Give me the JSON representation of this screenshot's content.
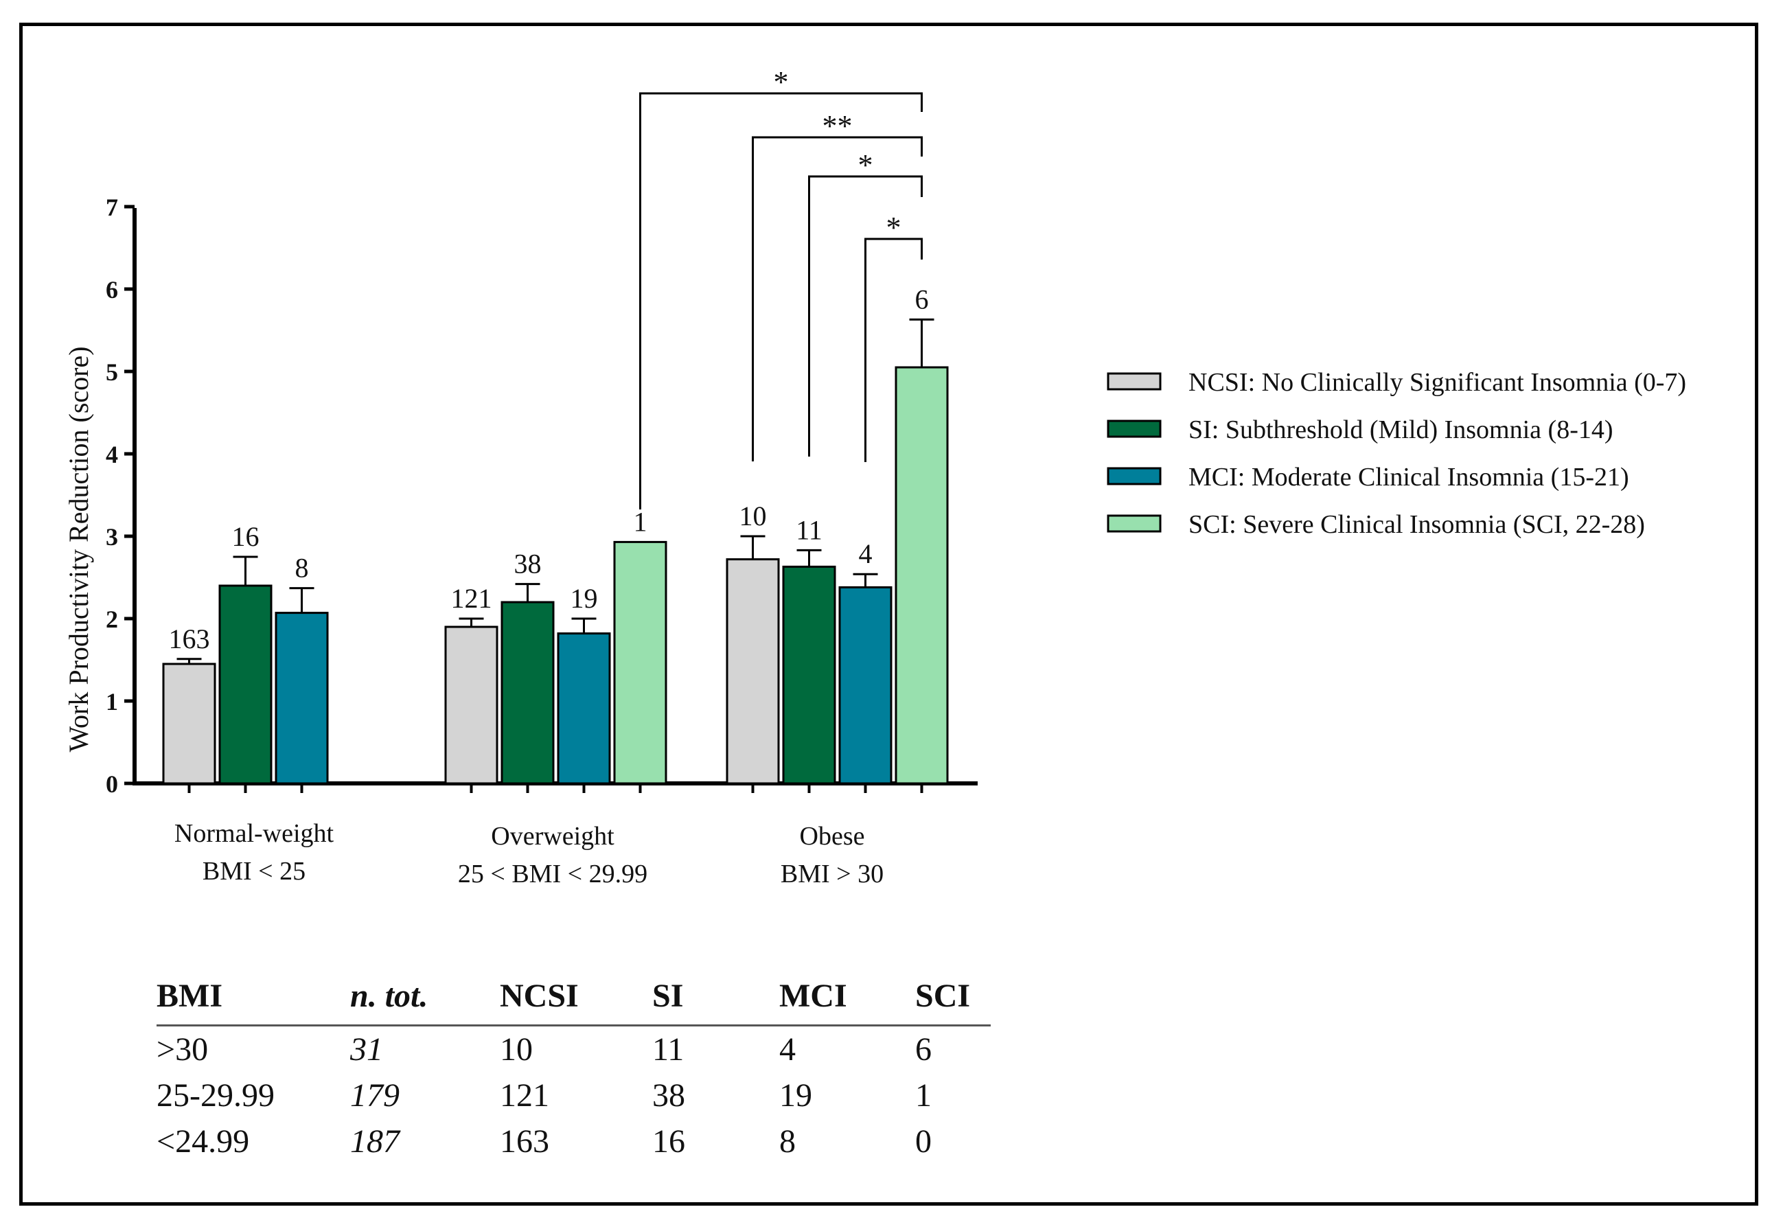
{
  "chart_data": {
    "type": "bar",
    "ylabel": "Work Productivity Reduction (score)",
    "ylim": [
      0,
      7
    ],
    "yticks": [
      "0",
      "1",
      "2",
      "3",
      "4",
      "5",
      "6",
      "7"
    ],
    "groups": [
      {
        "label_line1": "Normal-weight",
        "label_line2": "BMI < 25"
      },
      {
        "label_line1": "Overweight",
        "label_line2": "25 < BMI < 29.99"
      },
      {
        "label_line1": "Obese",
        "label_line2": "BMI > 30"
      }
    ],
    "series": [
      {
        "name": "NCSI: No Clinically Significant Insomnia (0-7)",
        "color": "#d4d4d4",
        "values": [
          1.45,
          1.9,
          2.72
        ],
        "errors": [
          0.06,
          0.1,
          0.28
        ],
        "n_labels": [
          "163",
          "121",
          "10"
        ]
      },
      {
        "name": "SI: Subthreshold (Mild) Insomnia (8-14)",
        "color": "#006a3d",
        "values": [
          2.4,
          2.2,
          2.63
        ],
        "errors": [
          0.35,
          0.22,
          0.2
        ],
        "n_labels": [
          "16",
          "38",
          "11"
        ]
      },
      {
        "name": "MCI: Moderate Clinical Insomnia (15-21)",
        "color": "#007f9a",
        "values": [
          2.07,
          1.82,
          2.38
        ],
        "errors": [
          0.3,
          0.18,
          0.16
        ],
        "n_labels": [
          "8",
          "19",
          "4"
        ]
      },
      {
        "name": "SCI: Severe Clinical Insomnia (SCI, 22-28)",
        "color": "#98e0ae",
        "values": [
          null,
          2.93,
          5.05
        ],
        "errors": [
          null,
          null,
          0.58
        ],
        "n_labels": [
          "",
          "1",
          "6"
        ]
      }
    ],
    "significance": [
      "*",
      "**",
      "*",
      "*"
    ]
  },
  "table": {
    "headers": [
      "BMI",
      "n. tot.",
      "NCSI",
      "SI",
      "MCI",
      "SCI"
    ],
    "rows": [
      [
        ">30",
        "31",
        "10",
        "11",
        "4",
        "6"
      ],
      [
        "25-29.99",
        "179",
        "121",
        "38",
        "19",
        "1"
      ],
      [
        "<24.99",
        "187",
        "163",
        "16",
        "8",
        "0"
      ]
    ]
  }
}
